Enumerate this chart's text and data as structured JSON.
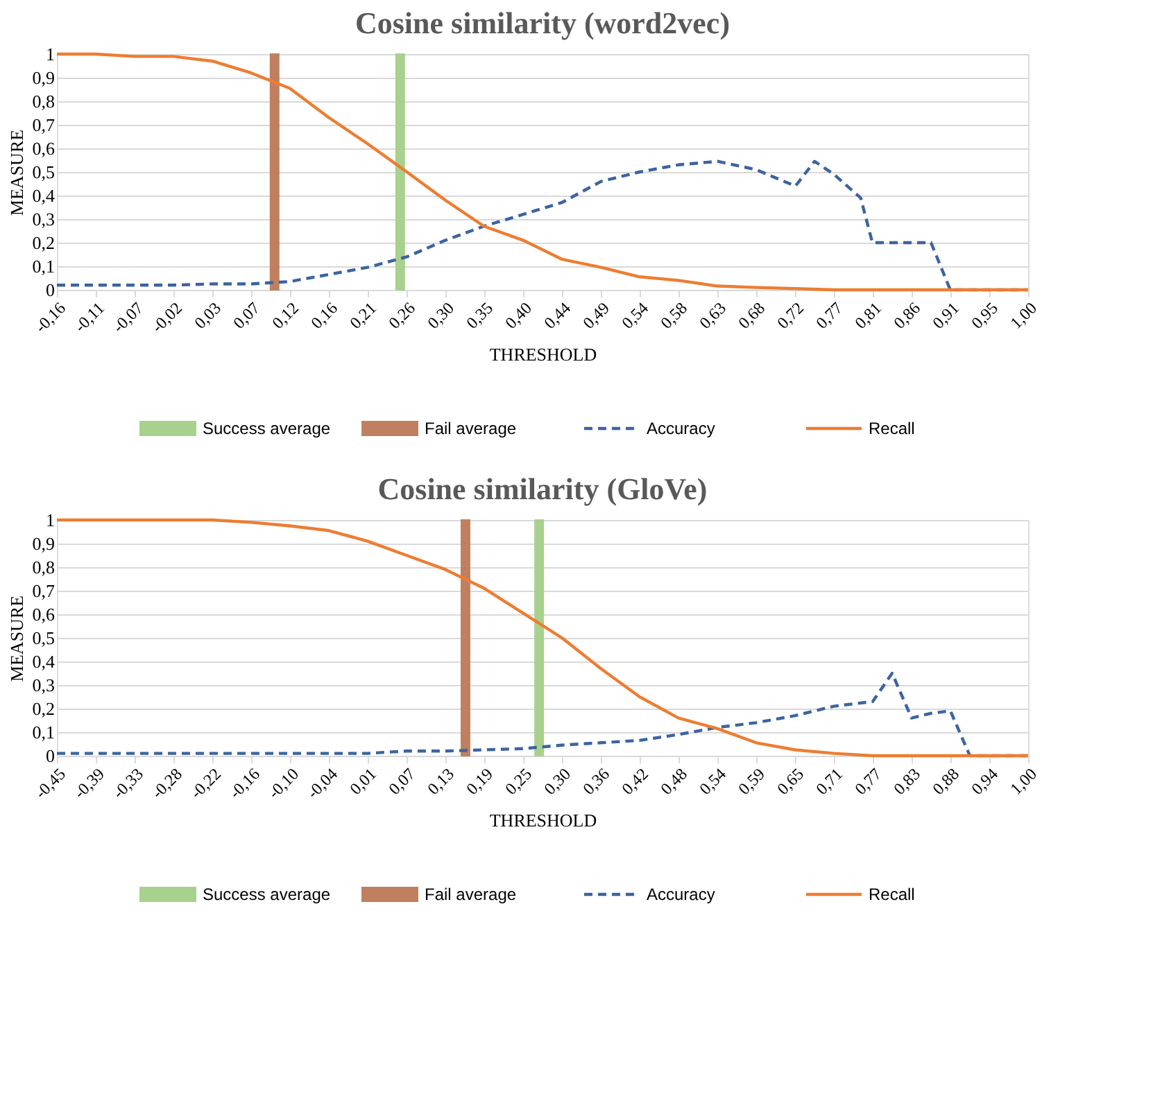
{
  "chart_data": [
    {
      "type": "line",
      "title": "Cosine similarity (word2vec)",
      "xlabel": "THRESHOLD",
      "ylabel": "MEASURE",
      "grid": "y",
      "legend": "bottom",
      "xlim": [
        -0.16,
        1.0
      ],
      "xticks": [
        {
          "value": -0.16,
          "label": "-0,16"
        },
        {
          "value": -0.1136,
          "label": "-0,11"
        },
        {
          "value": -0.0672,
          "label": "-0,07"
        },
        {
          "value": -0.0208,
          "label": "-0,02"
        },
        {
          "value": 0.0256,
          "label": "0,03"
        },
        {
          "value": 0.072,
          "label": "0,07"
        },
        {
          "value": 0.1184,
          "label": "0,12"
        },
        {
          "value": 0.1648,
          "label": "0,16"
        },
        {
          "value": 0.2112,
          "label": "0,21"
        },
        {
          "value": 0.2576,
          "label": "0,26"
        },
        {
          "value": 0.304,
          "label": "0,30"
        },
        {
          "value": 0.3504,
          "label": "0,35"
        },
        {
          "value": 0.3968,
          "label": "0,40"
        },
        {
          "value": 0.4432,
          "label": "0,44"
        },
        {
          "value": 0.4896,
          "label": "0,49"
        },
        {
          "value": 0.536,
          "label": "0,54"
        },
        {
          "value": 0.5824,
          "label": "0,58"
        },
        {
          "value": 0.6288,
          "label": "0,63"
        },
        {
          "value": 0.6752,
          "label": "0,68"
        },
        {
          "value": 0.7216,
          "label": "0,72"
        },
        {
          "value": 0.768,
          "label": "0,77"
        },
        {
          "value": 0.8144,
          "label": "0,81"
        },
        {
          "value": 0.8608,
          "label": "0,86"
        },
        {
          "value": 0.9072,
          "label": "0,91"
        },
        {
          "value": 0.9536,
          "label": "0,95"
        },
        {
          "value": 1.0,
          "label": "1,00"
        }
      ],
      "ylim": [
        0,
        1
      ],
      "yticks": [
        0,
        {
          "value": 0.1,
          "label": "0,1"
        },
        {
          "value": 0.2,
          "label": "0,2"
        },
        {
          "value": 0.3,
          "label": "0,3"
        },
        {
          "value": 0.4,
          "label": "0,4"
        },
        {
          "value": 0.5,
          "label": "0,5"
        },
        {
          "value": 0.6,
          "label": "0,6"
        },
        {
          "value": 0.7,
          "label": "0,7"
        },
        {
          "value": 0.8,
          "label": "0,8"
        },
        {
          "value": 0.9,
          "label": "0,9"
        },
        1
      ],
      "series": [
        {
          "name": "Success average",
          "type": "bar",
          "color": "#a9d18e",
          "x": [
            0.25
          ],
          "values": [
            1
          ]
        },
        {
          "name": "Fail average",
          "type": "bar",
          "color": "#c0805f",
          "x": [
            0.1
          ],
          "values": [
            1
          ]
        },
        {
          "name": "Accuracy",
          "line_style": "dashed",
          "color": "#3b64a0",
          "x": [
            -0.16,
            -0.114,
            -0.067,
            -0.021,
            0.026,
            0.072,
            0.118,
            0.165,
            0.211,
            0.258,
            0.304,
            0.35,
            0.397,
            0.443,
            0.49,
            0.536,
            0.582,
            0.629,
            0.675,
            0.722,
            0.745,
            0.768,
            0.8,
            0.814,
            0.861,
            0.884,
            0.907,
            0.954,
            1.0
          ],
          "values": [
            0.02,
            0.02,
            0.02,
            0.02,
            0.025,
            0.025,
            0.035,
            0.065,
            0.095,
            0.14,
            0.21,
            0.27,
            0.32,
            0.37,
            0.46,
            0.5,
            0.53,
            0.545,
            0.51,
            0.44,
            0.545,
            0.49,
            0.39,
            0.2,
            0.2,
            0.2,
            0,
            0,
            0
          ]
        },
        {
          "name": "Recall",
          "line_style": "solid",
          "color": "#ed7d31",
          "x": [
            -0.16,
            -0.114,
            -0.067,
            -0.021,
            0.026,
            0.072,
            0.118,
            0.165,
            0.211,
            0.258,
            0.304,
            0.35,
            0.397,
            0.443,
            0.49,
            0.536,
            0.582,
            0.629,
            0.675,
            0.722,
            0.768,
            0.814,
            0.861,
            0.907,
            0.954,
            1.0
          ],
          "values": [
            1,
            1,
            0.99,
            0.99,
            0.97,
            0.92,
            0.855,
            0.73,
            0.62,
            0.5,
            0.38,
            0.27,
            0.21,
            0.13,
            0.095,
            0.055,
            0.04,
            0.016,
            0.01,
            0.005,
            0,
            0,
            0,
            0,
            0,
            0
          ]
        }
      ]
    },
    {
      "type": "line",
      "title": "Cosine similarity (GloVe)",
      "xlabel": "THRESHOLD",
      "ylabel": "MEASURE",
      "grid": "y",
      "legend": "bottom",
      "xlim": [
        -0.45,
        1.0
      ],
      "xticks": [
        {
          "value": -0.45,
          "label": "-0,45"
        },
        {
          "value": -0.392,
          "label": "-0,39"
        },
        {
          "value": -0.334,
          "label": "-0,33"
        },
        {
          "value": -0.276,
          "label": "-0,28"
        },
        {
          "value": -0.218,
          "label": "-0,22"
        },
        {
          "value": -0.16,
          "label": "-0,16"
        },
        {
          "value": -0.102,
          "label": "-0,10"
        },
        {
          "value": -0.044,
          "label": "-0,04"
        },
        {
          "value": 0.014,
          "label": "0,01"
        },
        {
          "value": 0.072,
          "label": "0,07"
        },
        {
          "value": 0.13,
          "label": "0,13"
        },
        {
          "value": 0.188,
          "label": "0,19"
        },
        {
          "value": 0.246,
          "label": "0,25"
        },
        {
          "value": 0.304,
          "label": "0,30"
        },
        {
          "value": 0.362,
          "label": "0,36"
        },
        {
          "value": 0.42,
          "label": "0,42"
        },
        {
          "value": 0.478,
          "label": "0,48"
        },
        {
          "value": 0.536,
          "label": "0,54"
        },
        {
          "value": 0.594,
          "label": "0,59"
        },
        {
          "value": 0.652,
          "label": "0,65"
        },
        {
          "value": 0.71,
          "label": "0,71"
        },
        {
          "value": 0.768,
          "label": "0,77"
        },
        {
          "value": 0.826,
          "label": "0,83"
        },
        {
          "value": 0.884,
          "label": "0,88"
        },
        {
          "value": 0.942,
          "label": "0,94"
        },
        {
          "value": 1.0,
          "label": "1,00"
        }
      ],
      "ylim": [
        0,
        1
      ],
      "yticks": [
        0,
        {
          "value": 0.1,
          "label": "0,1"
        },
        {
          "value": 0.2,
          "label": "0,2"
        },
        {
          "value": 0.3,
          "label": "0,3"
        },
        {
          "value": 0.4,
          "label": "0,4"
        },
        {
          "value": 0.5,
          "label": "0,5"
        },
        {
          "value": 0.6,
          "label": "0,6"
        },
        {
          "value": 0.7,
          "label": "0,7"
        },
        {
          "value": 0.8,
          "label": "0,8"
        },
        {
          "value": 0.9,
          "label": "0,9"
        },
        1
      ],
      "series": [
        {
          "name": "Success average",
          "type": "bar",
          "color": "#a9d18e",
          "x": [
            0.27
          ],
          "values": [
            1
          ]
        },
        {
          "name": "Fail average",
          "type": "bar",
          "color": "#c0805f",
          "x": [
            0.16
          ],
          "values": [
            1
          ]
        },
        {
          "name": "Accuracy",
          "line_style": "dashed",
          "color": "#3b64a0",
          "x": [
            -0.45,
            -0.392,
            -0.334,
            -0.276,
            -0.218,
            -0.16,
            -0.102,
            -0.044,
            0.014,
            0.072,
            0.13,
            0.188,
            0.246,
            0.304,
            0.362,
            0.42,
            0.478,
            0.536,
            0.594,
            0.652,
            0.71,
            0.768,
            0.797,
            0.826,
            0.855,
            0.884,
            0.913,
            0.942,
            1.0
          ],
          "values": [
            0.01,
            0.01,
            0.01,
            0.01,
            0.01,
            0.01,
            0.01,
            0.01,
            0.01,
            0.02,
            0.02,
            0.025,
            0.03,
            0.045,
            0.055,
            0.065,
            0.09,
            0.12,
            0.14,
            0.17,
            0.21,
            0.23,
            0.35,
            0.16,
            0.18,
            0.19,
            0,
            0,
            0
          ]
        },
        {
          "name": "Recall",
          "line_style": "solid",
          "color": "#ed7d31",
          "x": [
            -0.45,
            -0.392,
            -0.334,
            -0.276,
            -0.218,
            -0.16,
            -0.102,
            -0.044,
            0.014,
            0.072,
            0.13,
            0.188,
            0.246,
            0.304,
            0.362,
            0.42,
            0.478,
            0.536,
            0.594,
            0.652,
            0.71,
            0.768,
            0.826,
            0.884,
            0.942,
            1.0
          ],
          "values": [
            1,
            1,
            1,
            1,
            1,
            0.99,
            0.975,
            0.955,
            0.91,
            0.85,
            0.79,
            0.71,
            0.605,
            0.5,
            0.37,
            0.25,
            0.16,
            0.115,
            0.055,
            0.025,
            0.01,
            0,
            0,
            0,
            0,
            0
          ]
        }
      ]
    }
  ]
}
